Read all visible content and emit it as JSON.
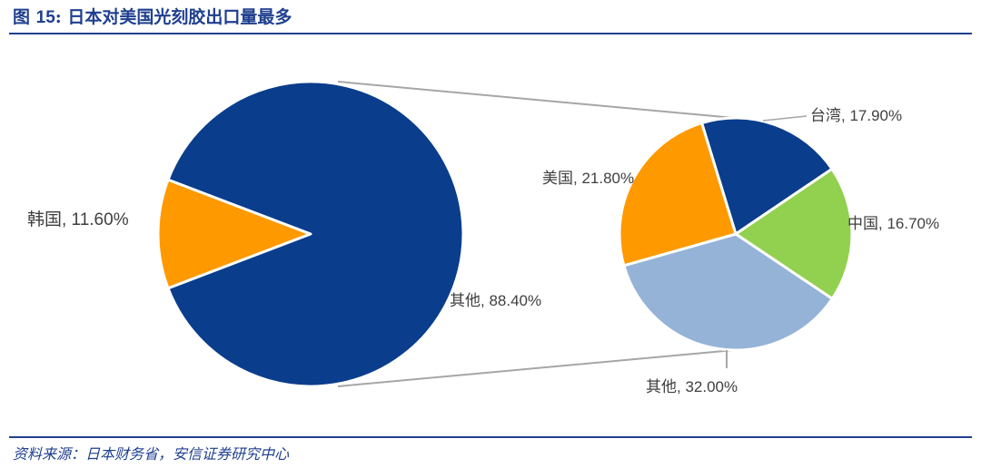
{
  "figure": {
    "title_prefix": "图",
    "title_number": "15",
    "title_sep": ":",
    "title_text": "日本对美国光刻胶出口量最多",
    "source": "资料来源：日本财务省，安信证券研究中心"
  },
  "colors": {
    "accent": "#1f3f8f",
    "primary_blue": "#0a3d8c",
    "orange": "#ff9900",
    "green": "#92d050",
    "light_blue": "#95b3d7",
    "connector": "#a6a6a6"
  },
  "chart_data": {
    "type": "pie",
    "subtype": "pie-of-pie",
    "main": {
      "slices": [
        {
          "label": "韩国",
          "value": 11.6,
          "text": "韩国, 11.60%",
          "color": "#ff9900"
        },
        {
          "label": "其他",
          "value": 88.4,
          "text": "其他, 88.40%",
          "color": "#0a3d8c"
        }
      ]
    },
    "breakdown": {
      "of": "其他",
      "slices": [
        {
          "label": "台湾",
          "value": 17.9,
          "text": "台湾, 17.90%",
          "color": "#0a3d8c"
        },
        {
          "label": "中国",
          "value": 16.7,
          "text": "中国, 16.70%",
          "color": "#92d050"
        },
        {
          "label": "其他",
          "value": 32.0,
          "text": "其他, 32.00%",
          "color": "#95b3d7"
        },
        {
          "label": "美国",
          "value": 21.8,
          "text": "美国, 21.80%",
          "color": "#ff9900"
        }
      ]
    }
  }
}
